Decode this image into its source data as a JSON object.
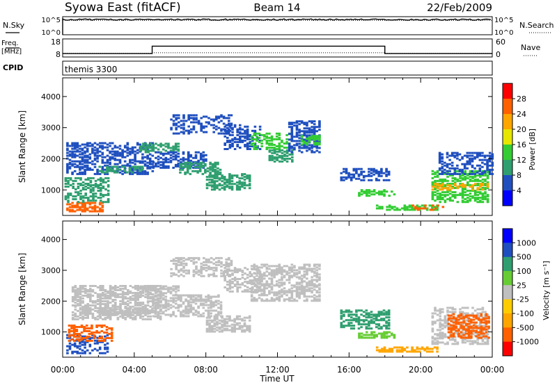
{
  "header": {
    "station": "Syowa East (fitACF)",
    "beam": "Beam 14",
    "date": "22/Feb/2009"
  },
  "chart_data": [
    {
      "type": "line",
      "panel": "noise",
      "left_label": "N.Sky",
      "right_label": "N.Search",
      "left_ticks": [
        "10^5",
        "10^0"
      ],
      "right_ticks": [
        "10^5",
        "10^0"
      ],
      "x": [
        0,
        24
      ],
      "series": [
        {
          "values": [
            4.2,
            4.2
          ]
        }
      ]
    },
    {
      "type": "line",
      "panel": "frequency",
      "left_label_1": "Freq.",
      "left_label_2": "[MHz]",
      "right_label": "Nave",
      "left_ticks": [
        18,
        8
      ],
      "right_ticks": [
        60,
        0
      ],
      "left_ylim": [
        8,
        18
      ],
      "right_ylim": [
        0,
        60
      ],
      "freq_steps": [
        [
          0,
          9.9
        ],
        [
          5,
          14.0
        ],
        [
          18,
          9.9
        ],
        [
          24,
          9.9
        ]
      ],
      "nave_steps": [
        [
          0,
          12
        ],
        [
          5,
          14
        ],
        [
          18,
          12
        ],
        [
          24,
          12
        ]
      ]
    },
    {
      "type": "table",
      "panel": "cpid",
      "label": "CPID",
      "value": "themis 3300"
    },
    {
      "type": "heatmap",
      "panel": "power",
      "ylabel": "Slant Range [km]",
      "yticks": [
        1000,
        2000,
        3000,
        4000
      ],
      "ylim": [
        180,
        4600
      ],
      "xlim": [
        0,
        24
      ],
      "colorbar": {
        "label": "Power [dB]",
        "ticks": [
          "4",
          "8",
          "12",
          "16",
          "20",
          "24",
          "28"
        ],
        "colors": [
          "#0000ff",
          "#1f4fbf",
          "#2f9f6f",
          "#33cc33",
          "#e6e600",
          "#ffa500",
          "#ff6000",
          "#ff0000"
        ]
      },
      "blobs": [
        [
          0.2,
          2.2,
          300,
          600,
          "#ff6000",
          0.55
        ],
        [
          0.1,
          2.5,
          600,
          1400,
          "#2f9f6f",
          0.45
        ],
        [
          0.2,
          5.0,
          1500,
          2500,
          "#1f4fbf",
          0.5
        ],
        [
          2.0,
          4.5,
          1550,
          1750,
          "#2f9f6f",
          0.6
        ],
        [
          4.3,
          6.5,
          2200,
          2500,
          "#2f9f6f",
          0.6
        ],
        [
          5.0,
          8.0,
          1700,
          2200,
          "#1f4fbf",
          0.5
        ],
        [
          6.5,
          8.8,
          1500,
          1900,
          "#2f9f6f",
          0.5
        ],
        [
          8.0,
          10.5,
          1000,
          1500,
          "#2f9f6f",
          0.55
        ],
        [
          6.0,
          9.5,
          2800,
          3400,
          "#1f4fbf",
          0.35
        ],
        [
          9.0,
          11.0,
          2300,
          3100,
          "#1f4fbf",
          0.4
        ],
        [
          10.5,
          12.8,
          2300,
          2800,
          "#33cc33",
          0.5
        ],
        [
          11.5,
          12.8,
          1900,
          2300,
          "#2f9f6f",
          0.6
        ],
        [
          12.6,
          14.4,
          2200,
          3200,
          "#1f4fbf",
          0.5
        ],
        [
          13.3,
          14.4,
          2450,
          2750,
          "#33cc33",
          0.6
        ],
        [
          15.5,
          18.3,
          1300,
          1700,
          "#1f4fbf",
          0.5
        ],
        [
          16.5,
          18.5,
          800,
          1000,
          "#33cc33",
          0.5
        ],
        [
          17.5,
          21.0,
          350,
          500,
          "#33cc33",
          0.6
        ],
        [
          19.5,
          21.2,
          350,
          500,
          "#ff6000",
          0.35
        ],
        [
          20.6,
          23.8,
          600,
          1600,
          "#33cc33",
          0.5
        ],
        [
          20.6,
          23.8,
          1000,
          1200,
          "#ffa500",
          0.45
        ],
        [
          21.0,
          24.0,
          1500,
          2200,
          "#1f4fbf",
          0.45
        ]
      ]
    },
    {
      "type": "heatmap",
      "panel": "velocity",
      "ylabel": "Slant Range [km]",
      "yticks": [
        1000,
        2000,
        3000,
        4000
      ],
      "ylim": [
        180,
        4600
      ],
      "xlim": [
        0,
        24
      ],
      "xlabel": "Time UT",
      "xticks": [
        "00:00",
        "04:00",
        "08:00",
        "12:00",
        "16:00",
        "20:00",
        "00:00"
      ],
      "colorbar": {
        "label": "Velocity [m s⁻¹]",
        "ticks": [
          "1000",
          "500",
          "100",
          "25",
          "-25",
          "-100",
          "-500",
          "-1000"
        ],
        "colors": [
          "#0000ff",
          "#1f4fbf",
          "#2f9f6f",
          "#66cc33",
          "#bfbfbf",
          "#ffcc00",
          "#ffa500",
          "#ff6000",
          "#ff0000"
        ]
      },
      "blobs": [
        [
          0.2,
          2.5,
          300,
          900,
          "#1f4fbf",
          0.4
        ],
        [
          0.3,
          2.8,
          700,
          1200,
          "#ff6000",
          0.45
        ],
        [
          0.5,
          5.5,
          1400,
          2500,
          "#bfbfbf",
          0.55
        ],
        [
          2.0,
          5.0,
          1550,
          1750,
          "#bfbfbf",
          0.7
        ],
        [
          4.3,
          6.5,
          2200,
          2500,
          "#bfbfbf",
          0.6
        ],
        [
          5.0,
          8.8,
          1500,
          2200,
          "#bfbfbf",
          0.55
        ],
        [
          8.0,
          10.5,
          1000,
          1500,
          "#bfbfbf",
          0.6
        ],
        [
          6.0,
          9.5,
          2800,
          3400,
          "#bfbfbf",
          0.4
        ],
        [
          9.0,
          11.0,
          2300,
          3100,
          "#bfbfbf",
          0.45
        ],
        [
          10.5,
          14.4,
          2000,
          3200,
          "#bfbfbf",
          0.55
        ],
        [
          15.5,
          18.3,
          1100,
          1700,
          "#2f9f6f",
          0.5
        ],
        [
          16.5,
          18.5,
          800,
          1000,
          "#66cc33",
          0.5
        ],
        [
          17.5,
          21.0,
          350,
          500,
          "#ffa500",
          0.55
        ],
        [
          20.6,
          23.8,
          600,
          1800,
          "#bfbfbf",
          0.45
        ],
        [
          21.5,
          23.8,
          800,
          1600,
          "#ff6000",
          0.5
        ]
      ]
    }
  ]
}
